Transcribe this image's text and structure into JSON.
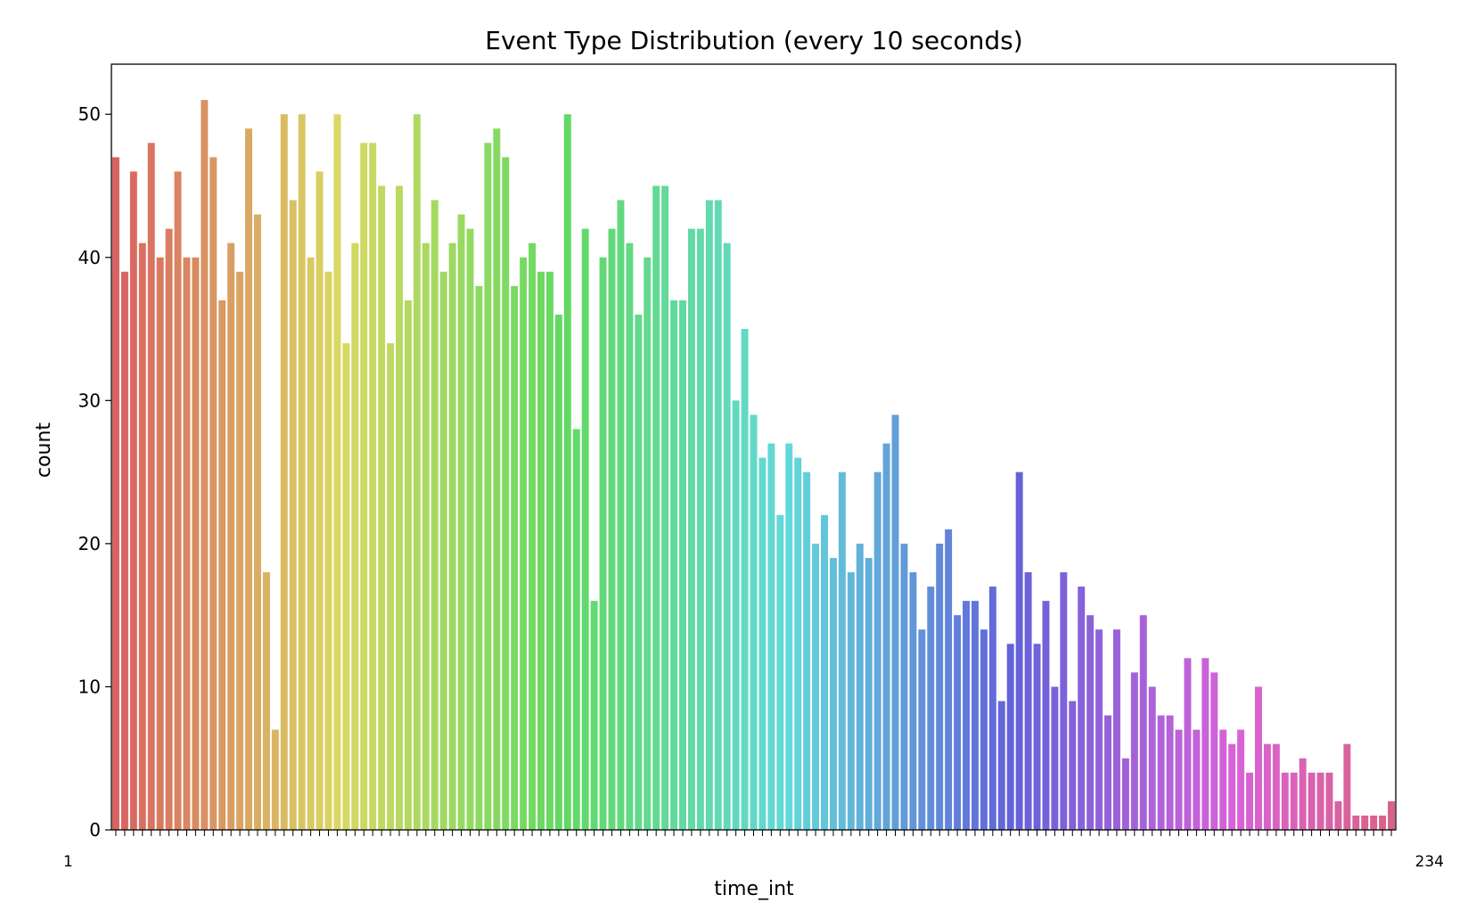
{
  "chart_data": {
    "type": "bar",
    "title": "Event Type Distribution (every 10 seconds)",
    "xlabel": "time_int",
    "ylabel": "count",
    "ylim": [
      0,
      53.5
    ],
    "yticks": [
      0,
      10,
      20,
      30,
      40,
      50
    ],
    "grid": false,
    "legend": "none",
    "x_tick_labels_visible": {
      "left": "1",
      "right": "234"
    },
    "values": [
      47,
      39,
      46,
      41,
      48,
      40,
      42,
      46,
      40,
      40,
      51,
      47,
      37,
      41,
      39,
      49,
      43,
      18,
      7,
      50,
      44,
      50,
      40,
      46,
      39,
      50,
      34,
      41,
      48,
      48,
      45,
      34,
      45,
      37,
      50,
      41,
      44,
      39,
      41,
      43,
      42,
      38,
      48,
      49,
      47,
      38,
      40,
      41,
      39,
      39,
      36,
      50,
      28,
      42,
      16,
      40,
      42,
      44,
      41,
      36,
      40,
      45,
      45,
      37,
      37,
      42,
      42,
      44,
      44,
      41,
      30,
      35,
      29,
      26,
      27,
      22,
      27,
      26,
      25,
      20,
      22,
      19,
      25,
      18,
      20,
      19,
      25,
      27,
      29,
      20,
      18,
      14,
      17,
      20,
      21,
      15,
      16,
      16,
      14,
      17,
      9,
      13,
      25,
      18,
      13,
      16,
      10,
      18,
      9,
      17,
      15,
      14,
      8,
      14,
      5,
      11,
      15,
      10,
      8,
      8,
      7,
      12,
      7,
      12,
      11,
      7,
      6,
      7,
      4,
      10,
      6,
      6,
      4,
      4,
      5,
      4,
      4,
      4,
      2,
      6,
      1,
      1,
      1,
      1,
      2
    ]
  }
}
